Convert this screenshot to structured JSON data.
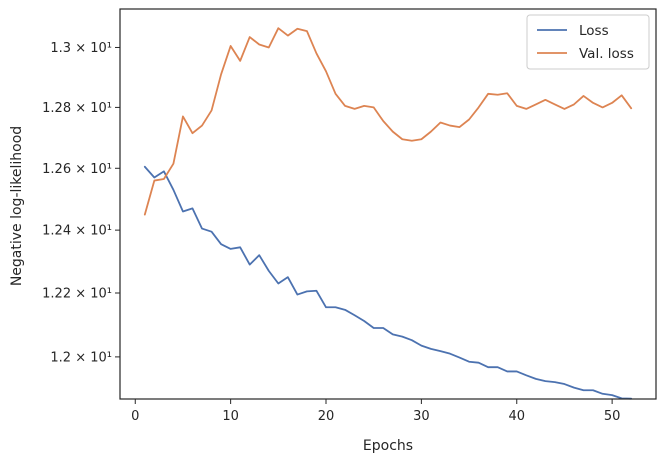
{
  "chart_data": {
    "type": "line",
    "xlabel": "Epochs",
    "ylabel": "Negative log-likelihood",
    "xlim": [
      -1.6,
      54.6
    ],
    "ylim": [
      11.87,
      13.13
    ],
    "yscale": "log",
    "x_ticks": [
      0,
      10,
      20,
      30,
      40,
      50
    ],
    "y_ticks": [
      {
        "value": 12.0,
        "label": "1.2 × 10¹"
      },
      {
        "value": 12.2,
        "label": "1.22 × 10¹"
      },
      {
        "value": 12.4,
        "label": "1.24 × 10¹"
      },
      {
        "value": 12.6,
        "label": "1.26 × 10¹"
      },
      {
        "value": 12.8,
        "label": "1.28 × 10¹"
      },
      {
        "value": 13.0,
        "label": "1.3 × 10¹"
      }
    ],
    "grid": false,
    "legend_position": "top-right",
    "x": [
      1,
      2,
      3,
      4,
      5,
      6,
      7,
      8,
      9,
      10,
      11,
      12,
      13,
      14,
      15,
      16,
      17,
      18,
      19,
      20,
      21,
      22,
      23,
      24,
      25,
      26,
      27,
      28,
      29,
      30,
      31,
      32,
      33,
      34,
      35,
      36,
      37,
      38,
      39,
      40,
      41,
      42,
      43,
      44,
      45,
      46,
      47,
      48,
      49,
      50,
      51,
      52
    ],
    "series": [
      {
        "name": "Loss",
        "color": "#4c72b0",
        "values": [
          12.605,
          12.57,
          12.59,
          12.53,
          12.46,
          12.47,
          12.405,
          12.395,
          12.355,
          12.34,
          12.345,
          12.29,
          12.32,
          12.27,
          12.23,
          12.25,
          12.195,
          12.205,
          12.207,
          12.155,
          12.155,
          12.147,
          12.13,
          12.112,
          12.09,
          12.09,
          12.07,
          12.063,
          12.052,
          12.035,
          12.025,
          12.018,
          12.01,
          11.998,
          11.985,
          11.982,
          11.968,
          11.968,
          11.955,
          11.955,
          11.943,
          11.932,
          11.925,
          11.922,
          11.916,
          11.905,
          11.897,
          11.897,
          11.886,
          11.882,
          11.872,
          11.871
        ]
      },
      {
        "name": "Val. loss",
        "color": "#dd8452",
        "values": [
          12.45,
          12.56,
          12.565,
          12.615,
          12.77,
          12.715,
          12.74,
          12.79,
          12.91,
          13.005,
          12.955,
          13.035,
          13.01,
          13.0,
          13.065,
          13.04,
          13.063,
          13.055,
          12.98,
          12.92,
          12.845,
          12.805,
          12.795,
          12.805,
          12.8,
          12.755,
          12.72,
          12.695,
          12.69,
          12.695,
          12.72,
          12.75,
          12.74,
          12.735,
          12.76,
          12.8,
          12.845,
          12.842,
          12.847,
          12.805,
          12.795,
          12.81,
          12.825,
          12.81,
          12.795,
          12.81,
          12.838,
          12.815,
          12.8,
          12.815,
          12.84,
          12.797
        ]
      }
    ]
  }
}
